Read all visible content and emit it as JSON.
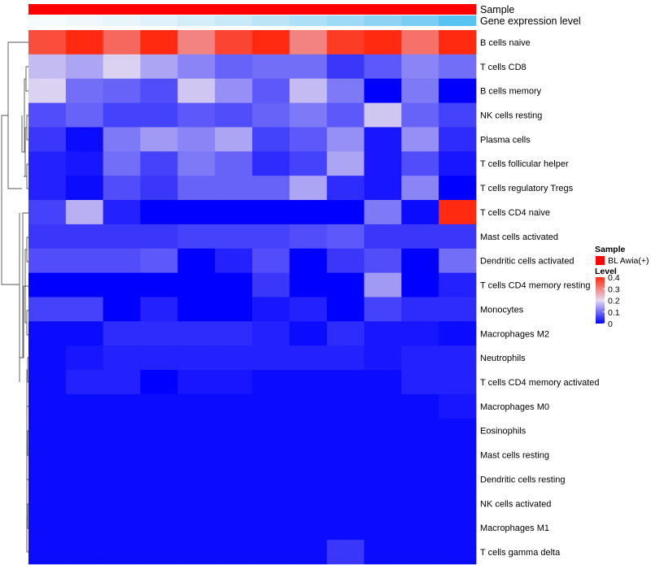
{
  "chart_data": {
    "type": "heatmap",
    "annotation_tracks": [
      {
        "name": "Sample",
        "colors": [
          "#ff0000",
          "#ff0000",
          "#ff0000",
          "#ff0000",
          "#ff0000",
          "#ff0000",
          "#ff0000",
          "#ff0000",
          "#ff0000",
          "#ff0000",
          "#ff0000",
          "#ff0000"
        ]
      },
      {
        "name": "Gene expression level",
        "colors": [
          "#f6fbfd",
          "#f0f8fc",
          "#e8f5fb",
          "#dff1fa",
          "#d3edf9",
          "#c8e9f8",
          "#bbe4f7",
          "#ade0f6",
          "#9ddaf5",
          "#8dd4f4",
          "#7bcef3",
          "#56c3f1"
        ]
      }
    ],
    "rows": [
      {
        "label": "B cells naive",
        "values": [
          0.36,
          0.41,
          0.33,
          0.4,
          0.3,
          0.37,
          0.42,
          0.3,
          0.38,
          0.42,
          0.32,
          0.4
        ]
      },
      {
        "label": "T cells CD8",
        "values": [
          0.17,
          0.15,
          0.19,
          0.15,
          0.12,
          0.09,
          0.1,
          0.1,
          0.05,
          0.08,
          0.12,
          0.1
        ]
      },
      {
        "label": "B cells memory",
        "values": [
          0.19,
          0.1,
          0.09,
          0.07,
          0.18,
          0.13,
          0.08,
          0.17,
          0.11,
          0.0,
          0.11,
          0.0
        ]
      },
      {
        "label": "NK cells resting",
        "values": [
          0.07,
          0.09,
          0.06,
          0.06,
          0.08,
          0.07,
          0.09,
          0.11,
          0.08,
          0.18,
          0.09,
          0.06
        ]
      },
      {
        "label": "Plasma cells",
        "values": [
          0.05,
          0.01,
          0.11,
          0.14,
          0.12,
          0.15,
          0.06,
          0.08,
          0.13,
          0.02,
          0.13,
          0.04
        ]
      },
      {
        "label": "T cells follicular helper",
        "values": [
          0.03,
          0.02,
          0.1,
          0.06,
          0.11,
          0.09,
          0.04,
          0.06,
          0.15,
          0.02,
          0.07,
          0.02
        ]
      },
      {
        "label": "T cells regulatory  Tregs",
        "values": [
          0.03,
          0.01,
          0.07,
          0.05,
          0.09,
          0.09,
          0.09,
          0.15,
          0.04,
          0.02,
          0.12,
          0.0
        ]
      },
      {
        "label": "T cells CD4 naive",
        "values": [
          0.06,
          0.16,
          0.03,
          0.0,
          0.0,
          0.0,
          0.0,
          0.0,
          0.0,
          0.11,
          0.01,
          0.42
        ]
      },
      {
        "label": "Mast cells activated",
        "values": [
          0.05,
          0.05,
          0.05,
          0.05,
          0.06,
          0.06,
          0.06,
          0.07,
          0.08,
          0.05,
          0.05,
          0.05
        ]
      },
      {
        "label": "Dendritic cells activated",
        "values": [
          0.07,
          0.07,
          0.07,
          0.08,
          0.0,
          0.03,
          0.07,
          0.0,
          0.05,
          0.07,
          0.0,
          0.1
        ]
      },
      {
        "label": "T cells CD4 memory resting",
        "values": [
          0.0,
          0.0,
          0.0,
          0.0,
          0.0,
          0.0,
          0.05,
          0.0,
          0.0,
          0.14,
          0.0,
          0.03
        ]
      },
      {
        "label": "Monocytes",
        "values": [
          0.06,
          0.06,
          0.0,
          0.03,
          0.0,
          0.0,
          0.02,
          0.03,
          0.0,
          0.06,
          0.04,
          0.04
        ]
      },
      {
        "label": "Macrophages M2",
        "values": [
          0.01,
          0.01,
          0.04,
          0.04,
          0.04,
          0.04,
          0.03,
          0.01,
          0.04,
          0.02,
          0.02,
          0.01
        ]
      },
      {
        "label": "Neutrophils",
        "values": [
          0.01,
          0.02,
          0.03,
          0.03,
          0.03,
          0.03,
          0.03,
          0.03,
          0.03,
          0.02,
          0.03,
          0.03
        ]
      },
      {
        "label": "T cells CD4 memory activated",
        "values": [
          0.01,
          0.03,
          0.03,
          0.0,
          0.02,
          0.02,
          0.01,
          0.01,
          0.01,
          0.01,
          0.03,
          0.03
        ]
      },
      {
        "label": "Macrophages M0",
        "values": [
          0.01,
          0.01,
          0.01,
          0.01,
          0.01,
          0.01,
          0.01,
          0.01,
          0.01,
          0.01,
          0.01,
          0.02
        ]
      },
      {
        "label": "Eosinophils",
        "values": [
          0.01,
          0.01,
          0.01,
          0.01,
          0.01,
          0.01,
          0.01,
          0.01,
          0.01,
          0.01,
          0.01,
          0.01
        ]
      },
      {
        "label": "Mast cells resting",
        "values": [
          0.01,
          0.01,
          0.01,
          0.01,
          0.01,
          0.01,
          0.01,
          0.01,
          0.01,
          0.01,
          0.01,
          0.01
        ]
      },
      {
        "label": "Dendritic cells resting",
        "values": [
          0.01,
          0.01,
          0.01,
          0.01,
          0.01,
          0.01,
          0.01,
          0.01,
          0.01,
          0.01,
          0.01,
          0.01
        ]
      },
      {
        "label": "NK cells activated",
        "values": [
          0.01,
          0.01,
          0.01,
          0.01,
          0.01,
          0.01,
          0.01,
          0.01,
          0.01,
          0.01,
          0.01,
          0.01
        ]
      },
      {
        "label": "Macrophages M1",
        "values": [
          0.01,
          0.01,
          0.01,
          0.01,
          0.01,
          0.01,
          0.01,
          0.01,
          0.01,
          0.01,
          0.01,
          0.01
        ]
      },
      {
        "label": "T cells gamma delta",
        "values": [
          0.01,
          0.01,
          0.01,
          0.01,
          0.01,
          0.01,
          0.01,
          0.01,
          0.05,
          0.01,
          0.01,
          0.01
        ]
      }
    ],
    "color_scale": {
      "stops": [
        {
          "value": 0.0,
          "color": "#0000ff"
        },
        {
          "value": 0.2,
          "color": "#e6dcf0"
        },
        {
          "value": 0.4,
          "color": "#ff2a10"
        }
      ],
      "range": [
        0,
        0.4
      ]
    },
    "legend": {
      "sample_title": "Sample",
      "sample_entry": "BL Awia(+)",
      "sample_color": "#ff0000",
      "level_title": "Level",
      "level_ticks": [
        0,
        0.1,
        0.2,
        0.3,
        0.4
      ],
      "level_tick_labels": [
        "0",
        "0.1",
        "0.2",
        "0.3",
        "0.4"
      ]
    },
    "dendrogram": "rows clustered (left side)"
  }
}
